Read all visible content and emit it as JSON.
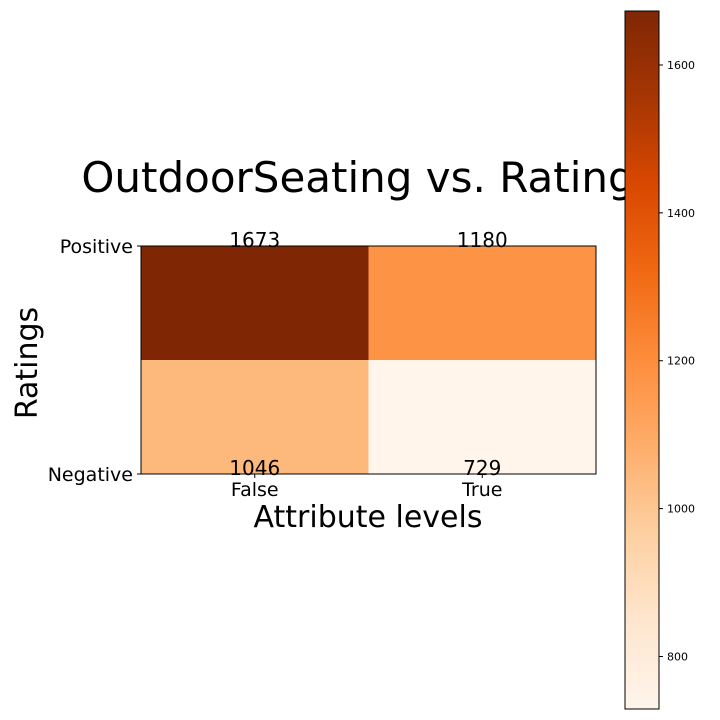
{
  "chart_data": {
    "type": "heatmap",
    "title": "OutdoorSeating vs. Rating",
    "xlabel": "Attribute levels",
    "ylabel": "Ratings",
    "x_categories": [
      "False",
      "True"
    ],
    "y_categories": [
      "Positive",
      "Negative"
    ],
    "values": [
      [
        1673,
        1180
      ],
      [
        1046,
        729
      ]
    ],
    "colormap": "Oranges",
    "colorbar": {
      "range": [
        729,
        1673
      ],
      "ticks": [
        800,
        1000,
        1200,
        1400,
        1600
      ],
      "tick_labels": [
        "800",
        "1000",
        "1200",
        "1400",
        "1600"
      ]
    }
  }
}
